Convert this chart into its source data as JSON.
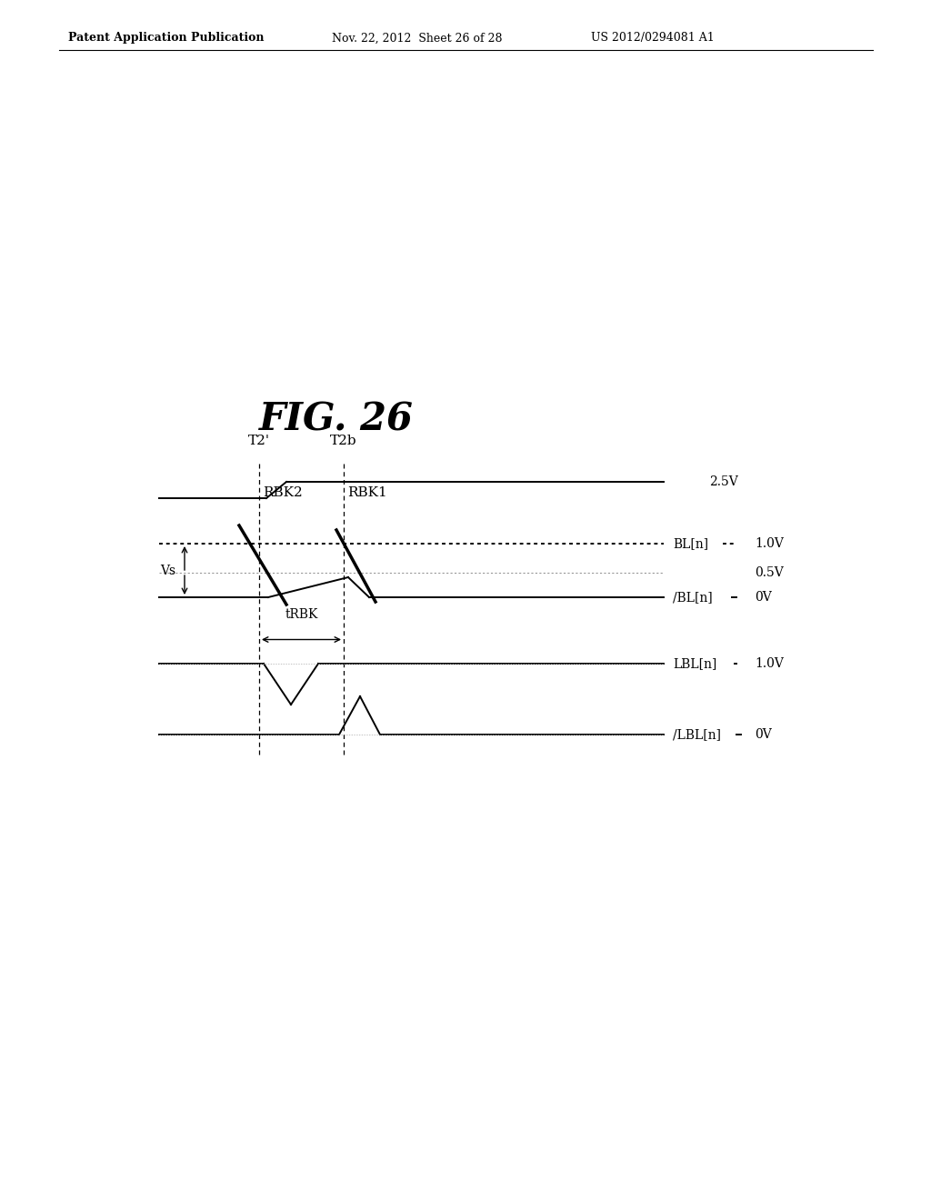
{
  "title": "FIG. 26",
  "header_left": "Patent Application Publication",
  "header_mid": "Nov. 22, 2012  Sheet 26 of 28",
  "header_right": "US 2012/0294081 A1",
  "bg_color": "#ffffff",
  "text_color": "#000000"
}
